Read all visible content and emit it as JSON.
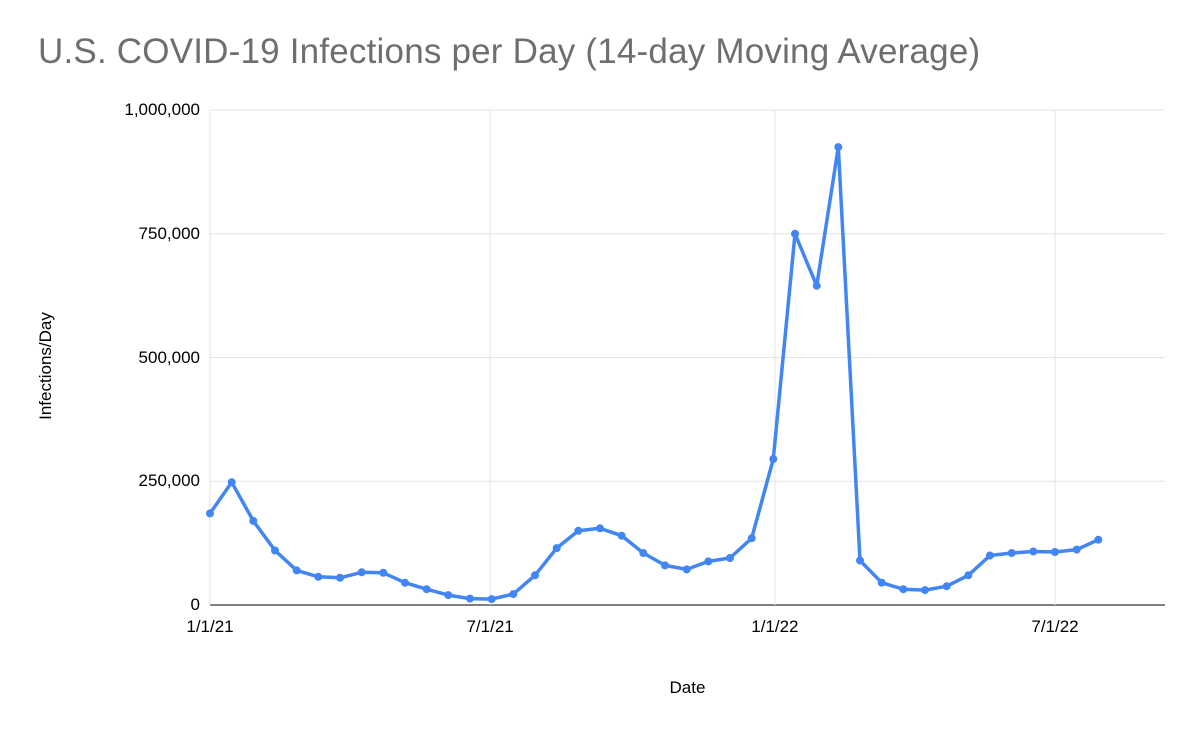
{
  "chart": {
    "title": "U.S. COVID-19 Infections per Day (14-day Moving Average)",
    "x_label": "Date",
    "y_label": "Infections/Day"
  },
  "chart_data": {
    "type": "line",
    "title": "U.S. COVID-19 Infections per Day (14-day Moving Average)",
    "xlabel": "Date",
    "ylabel": "Infections/Day",
    "ylim": [
      0,
      1000000
    ],
    "grid": true,
    "legend": "none",
    "line_color": "#4285f4",
    "marker": "circle",
    "x": [
      "2021-01-01",
      "2021-01-15",
      "2021-01-29",
      "2021-02-12",
      "2021-02-26",
      "2021-03-12",
      "2021-03-26",
      "2021-04-09",
      "2021-04-23",
      "2021-05-07",
      "2021-05-21",
      "2021-06-04",
      "2021-06-18",
      "2021-07-02",
      "2021-07-16",
      "2021-07-30",
      "2021-08-13",
      "2021-08-27",
      "2021-09-10",
      "2021-09-24",
      "2021-10-08",
      "2021-10-22",
      "2021-11-05",
      "2021-11-19",
      "2021-12-03",
      "2021-12-17",
      "2021-12-31",
      "2022-01-14",
      "2022-01-28",
      "2022-02-11",
      "2022-02-25",
      "2022-03-11",
      "2022-03-25",
      "2022-04-08",
      "2022-04-22",
      "2022-05-06",
      "2022-05-20",
      "2022-06-03",
      "2022-06-17",
      "2022-07-01",
      "2022-07-15",
      "2022-07-29"
    ],
    "values": [
      185000,
      248000,
      170000,
      110000,
      70000,
      57000,
      55000,
      66000,
      65000,
      45000,
      32000,
      20000,
      13000,
      12000,
      22000,
      60000,
      115000,
      150000,
      155000,
      140000,
      105000,
      80000,
      72000,
      88000,
      95000,
      135000,
      295000,
      750000,
      645000,
      925000,
      90000,
      45000,
      32000,
      30000,
      38000,
      60000,
      100000,
      105000,
      108000,
      107000,
      112000,
      132000
    ],
    "x_ticks": [
      {
        "date": "2021-01-01",
        "label": "1/1/21"
      },
      {
        "date": "2021-07-01",
        "label": "7/1/21"
      },
      {
        "date": "2022-01-01",
        "label": "1/1/22"
      },
      {
        "date": "2022-07-01",
        "label": "7/1/22"
      }
    ],
    "y_ticks": [
      {
        "value": 0,
        "label": "0"
      },
      {
        "value": 250000,
        "label": "250,000"
      },
      {
        "value": 500000,
        "label": "500,000"
      },
      {
        "value": 750000,
        "label": "750,000"
      },
      {
        "value": 1000000,
        "label": "1,000,000"
      }
    ]
  }
}
